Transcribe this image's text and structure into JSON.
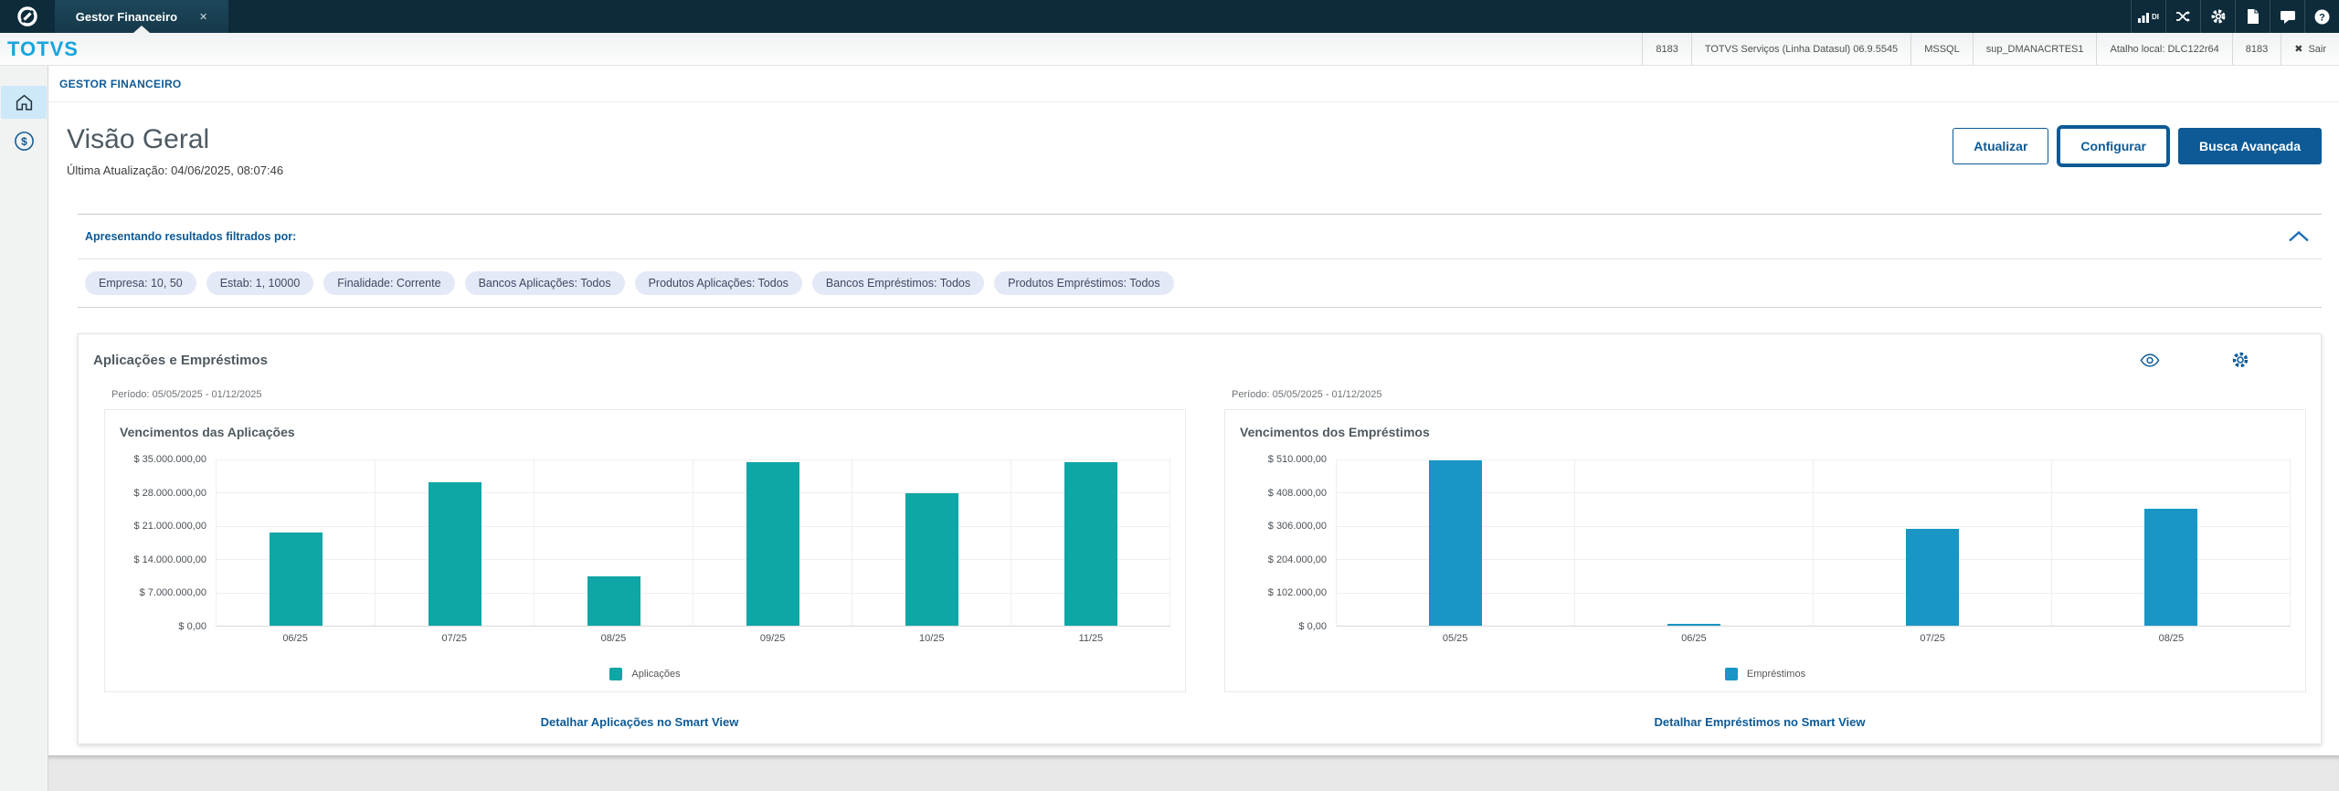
{
  "topbar": {
    "tab_title": "Gestor Financeiro",
    "close_label": "✕",
    "di_label": "DI"
  },
  "brand": {
    "logo_text": "TOTVS"
  },
  "session_info": {
    "items": [
      "8183",
      "TOTVS Serviços (Linha Datasul) 06.9.5545",
      "MSSQL",
      "sup_DMANACRTES1",
      "Atalho local: DLC122r64",
      "8183"
    ],
    "exit_label": "Sair"
  },
  "breadcrumb": {
    "label": "GESTOR FINANCEIRO"
  },
  "page": {
    "title": "Visão Geral",
    "last_update": "Última Atualização: 04/06/2025, 08:07:46"
  },
  "toolbar": {
    "refresh_label": "Atualizar",
    "configure_label": "Configurar",
    "advanced_search_label": "Busca Avançada"
  },
  "filters": {
    "header": "Apresentando resultados filtrados por:",
    "chips": [
      "Empresa: 10, 50",
      "Estab: 1, 10000",
      "Finalidade: Corrente",
      "Bancos Aplicações: Todos",
      "Produtos Aplicações: Todos",
      "Bancos Empréstimos: Todos",
      "Produtos Empréstimos: Todos"
    ]
  },
  "card": {
    "title": "Aplicações e Empréstimos"
  },
  "icons": {
    "topbar": [
      "metrics-di-icon",
      "exchange-icon",
      "gear-icon",
      "document-icon",
      "chat-icon",
      "help-icon"
    ],
    "card": [
      "eye-icon",
      "gear-icon"
    ],
    "sidebar": [
      "home-icon",
      "dollar-circle-icon"
    ],
    "filter": "chevron-up-icon",
    "exit": "x-icon"
  },
  "colors": {
    "primary": "#0d5a96",
    "topbar_bg": "#0d2b3a",
    "logo_blue": "#18a4de",
    "chip_bg": "#e4e9f7",
    "applications_teal": "#0fa6a6",
    "loans_blue": "#1996c5"
  },
  "chart_data": [
    {
      "type": "bar",
      "title": "Vencimentos das Aplicações",
      "period": "Período: 05/05/2025 - 01/12/2025",
      "categories": [
        "06/25",
        "07/25",
        "08/25",
        "09/25",
        "10/25",
        "11/25"
      ],
      "values": [
        19600000,
        30200000,
        10400000,
        34500000,
        27800000,
        34500000
      ],
      "ylim": [
        0,
        35000000
      ],
      "ytick_labels": [
        "$ 35.000.000,00",
        "$ 28.000.000,00",
        "$ 21.000.000,00",
        "$ 14.000.000,00",
        "$ 7.000.000,00",
        "$ 0,00"
      ],
      "grid": true,
      "legend": "Aplicações",
      "legend_position": "bottom",
      "color": "#0fa6a6",
      "link": "Detalhar Aplicações no Smart View"
    },
    {
      "type": "bar",
      "title": "Vencimentos dos Empréstimos",
      "period": "Período: 05/05/2025 - 01/12/2025",
      "categories": [
        "05/25",
        "06/25",
        "07/25",
        "08/25"
      ],
      "values": [
        507000,
        7000,
        296000,
        360000
      ],
      "ylim": [
        0,
        510000
      ],
      "ytick_labels": [
        "$ 510.000,00",
        "$ 408.000,00",
        "$ 306.000,00",
        "$ 204.000,00",
        "$ 102.000,00",
        "$ 0,00"
      ],
      "grid": true,
      "legend": "Empréstimos",
      "legend_position": "bottom",
      "color": "#1996c5",
      "link": "Detalhar Empréstimos no Smart View"
    }
  ]
}
